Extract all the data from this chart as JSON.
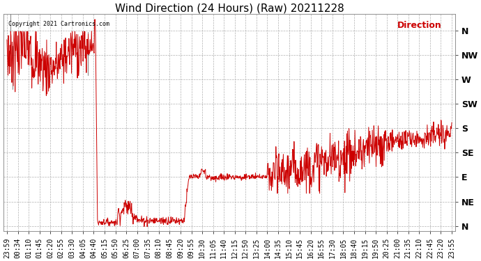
{
  "title": "Wind Direction (24 Hours) (Raw) 20211228",
  "copyright_text": "Copyright 2021 Cartronics.com",
  "legend_label": "Direction",
  "background_color": "#ffffff",
  "plot_bg_color": "#ffffff",
  "grid_color": "#b0b0b0",
  "line_color": "#cc0000",
  "y_labels": [
    "N",
    "NW",
    "W",
    "SW",
    "S",
    "SE",
    "E",
    "NE",
    "N"
  ],
  "y_values": [
    360,
    315,
    270,
    225,
    180,
    135,
    90,
    45,
    0
  ],
  "ylim": [
    -10,
    390
  ],
  "title_fontsize": 11,
  "tick_fontsize": 7,
  "x_tick_labels": [
    "23:59",
    "00:34",
    "01:10",
    "01:45",
    "02:20",
    "02:55",
    "03:30",
    "04:05",
    "04:40",
    "05:15",
    "05:50",
    "06:25",
    "07:00",
    "07:35",
    "08:10",
    "08:45",
    "09:20",
    "09:55",
    "10:30",
    "11:05",
    "11:40",
    "12:15",
    "12:50",
    "13:25",
    "14:00",
    "14:35",
    "15:10",
    "15:45",
    "16:20",
    "16:55",
    "17:30",
    "18:05",
    "18:40",
    "19:15",
    "19:50",
    "20:25",
    "21:00",
    "21:35",
    "22:10",
    "22:45",
    "23:20",
    "23:55"
  ],
  "n_xticks": 42,
  "figsize": [
    6.9,
    3.75
  ],
  "dpi": 100
}
